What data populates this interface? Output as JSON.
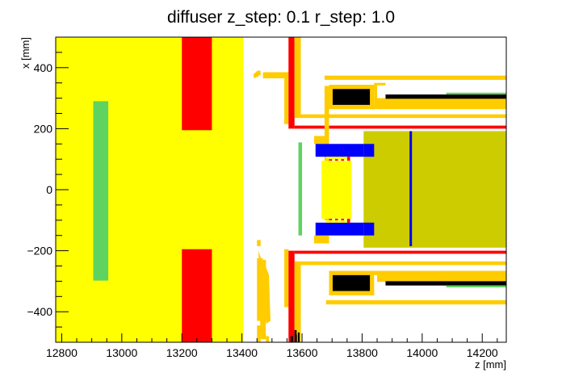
{
  "chart_data": {
    "type": "heatmap",
    "title": "diffuser z_step: 0.1 r_step: 1.0",
    "xlabel": "z [mm]",
    "ylabel": "x [mm]",
    "xlim": [
      12780,
      14280
    ],
    "ylim": [
      -500,
      500
    ],
    "xticks": [
      {
        "v": 12800,
        "label": "12800"
      },
      {
        "v": 13000,
        "label": "13000"
      },
      {
        "v": 13200,
        "label": "13200"
      },
      {
        "v": 13400,
        "label": "13400"
      },
      {
        "v": 13600,
        "label": "13600"
      },
      {
        "v": 13800,
        "label": "13800"
      },
      {
        "v": 14000,
        "label": "14000"
      },
      {
        "v": 14200,
        "label": "14200"
      }
    ],
    "yticks": [
      {
        "v": 400,
        "label": "400"
      },
      {
        "v": 200,
        "label": "200"
      },
      {
        "v": 0,
        "label": "0"
      },
      {
        "v": -200,
        "label": "−200"
      },
      {
        "v": -400,
        "label": "−400"
      }
    ],
    "colors": {
      "yellow": "#ffff00",
      "red": "#ff0000",
      "green": "#5fd35f",
      "gold": "#ffcc00",
      "olive": "#cccc00",
      "blue": "#0000ff",
      "black": "#000000",
      "white": "#ffffff"
    },
    "regions": [
      {
        "z0": 12780,
        "z1": 13405,
        "x0": -500,
        "x1": 500,
        "color": "yellow"
      },
      {
        "z0": 13200,
        "z1": 13300,
        "x0": 195,
        "x1": 500,
        "color": "red"
      },
      {
        "z0": 13200,
        "z1": 13300,
        "x0": -500,
        "x1": -195,
        "color": "red"
      },
      {
        "z0": 12905,
        "z1": 12955,
        "x0": -298,
        "x1": 290,
        "color": "green"
      },
      {
        "z0": 13450,
        "z1": 13462,
        "x0": 375,
        "x1": 390,
        "color": "gold"
      },
      {
        "z0": 13470,
        "z1": 13550,
        "x0": 365,
        "x1": 385,
        "color": "gold"
      },
      {
        "z0": 13541,
        "z1": 13555,
        "x0": 215,
        "x1": 385,
        "color": "gold"
      },
      {
        "z0": 13450,
        "z1": 13462,
        "x0": -185,
        "x1": -165,
        "color": "gold"
      },
      {
        "z0": 13450,
        "z1": 13470,
        "x0": -430,
        "x1": -225,
        "color": "gold"
      },
      {
        "z0": 13470,
        "z1": 13480,
        "x0": -430,
        "x1": -230,
        "color": "gold"
      },
      {
        "z0": 13450,
        "z1": 13462,
        "x0": -500,
        "x1": -445,
        "color": "gold"
      },
      {
        "z0": 13480,
        "z1": 13490,
        "x0": -500,
        "x1": -480,
        "color": "gold"
      },
      {
        "z0": 13541,
        "z1": 13555,
        "x0": -385,
        "x1": -195,
        "color": "gold"
      },
      {
        "z0": 13555,
        "z1": 13575,
        "x0": 200,
        "x1": 500,
        "color": "red"
      },
      {
        "z0": 13555,
        "z1": 13575,
        "x0": -500,
        "x1": -200,
        "color": "red"
      },
      {
        "z0": 13575,
        "z1": 14280,
        "x0": 200,
        "x1": 210,
        "color": "red"
      },
      {
        "z0": 13575,
        "z1": 14280,
        "x0": -210,
        "x1": -200,
        "color": "red"
      },
      {
        "z0": 13575,
        "z1": 13596,
        "x0": 235,
        "x1": 500,
        "color": "gold"
      },
      {
        "z0": 13575,
        "z1": 13596,
        "x0": -500,
        "x1": -235,
        "color": "gold"
      },
      {
        "z0": 13596,
        "z1": 14280,
        "x0": 235,
        "x1": 247,
        "color": "gold"
      },
      {
        "z0": 13596,
        "z1": 14280,
        "x0": -247,
        "x1": -235,
        "color": "gold"
      },
      {
        "z0": 13575,
        "z1": 13582,
        "x0": -500,
        "x1": -460,
        "color": "black"
      },
      {
        "z0": 13586,
        "z1": 13592,
        "x0": -500,
        "x1": -468,
        "color": "black"
      },
      {
        "z0": 13562,
        "z1": 13570,
        "x0": -500,
        "x1": -480,
        "color": "black"
      },
      {
        "z0": 13577,
        "z1": 13583,
        "x0": -500,
        "x1": -475,
        "color": "black"
      },
      {
        "z0": 13675,
        "z1": 13690,
        "x0": -100,
        "x1": 340,
        "color": "gold"
      },
      {
        "z0": 13675,
        "z1": 14280,
        "x0": 360,
        "x1": 374,
        "color": "gold"
      },
      {
        "z0": 13690,
        "z1": 14280,
        "x0": 264,
        "x1": 278,
        "color": "gold"
      },
      {
        "z0": 13690,
        "z1": 13840,
        "x0": 330,
        "x1": 344,
        "color": "gold"
      },
      {
        "z0": 13826,
        "z1": 13840,
        "x0": 264,
        "x1": 344,
        "color": "gold"
      },
      {
        "z0": 13690,
        "z1": 13702,
        "x0": 278,
        "x1": 330,
        "color": "gold"
      },
      {
        "z0": 13702,
        "z1": 13826,
        "x0": 278,
        "x1": 330,
        "color": "black"
      },
      {
        "z0": 13840,
        "z1": 13878,
        "x0": 342,
        "x1": 350,
        "color": "gold"
      },
      {
        "z0": 13840,
        "z1": 13878,
        "x0": 268,
        "x1": 272,
        "color": "gold"
      },
      {
        "z0": 13840,
        "z1": 13850,
        "x0": 272,
        "x1": 342,
        "color": "gold"
      },
      {
        "z0": 13850,
        "z1": 14280,
        "x0": 272,
        "x1": 300,
        "color": "gold"
      },
      {
        "z0": 13878,
        "z1": 14280,
        "x0": 298,
        "x1": 312,
        "color": "black"
      },
      {
        "z0": 14080,
        "z1": 14280,
        "x0": 312,
        "x1": 318,
        "color": "green"
      },
      {
        "z0": 13680,
        "z1": 14280,
        "x0": -376,
        "x1": -362,
        "color": "gold"
      },
      {
        "z0": 13690,
        "z1": 14280,
        "x0": -280,
        "x1": -266,
        "color": "gold"
      },
      {
        "z0": 13690,
        "z1": 13840,
        "x0": -346,
        "x1": -332,
        "color": "gold"
      },
      {
        "z0": 13826,
        "z1": 13840,
        "x0": -346,
        "x1": -266,
        "color": "gold"
      },
      {
        "z0": 13690,
        "z1": 13702,
        "x0": -332,
        "x1": -280,
        "color": "gold"
      },
      {
        "z0": 13702,
        "z1": 13826,
        "x0": -332,
        "x1": -280,
        "color": "black"
      },
      {
        "z0": 13850,
        "z1": 14280,
        "x0": -302,
        "x1": -274,
        "color": "gold"
      },
      {
        "z0": 13878,
        "z1": 14280,
        "x0": -314,
        "x1": -300,
        "color": "black"
      },
      {
        "z0": 14080,
        "z1": 14280,
        "x0": -320,
        "x1": -314,
        "color": "green"
      },
      {
        "z0": 13640,
        "z1": 13690,
        "x0": 150,
        "x1": 176,
        "color": "gold"
      },
      {
        "z0": 13640,
        "z1": 13690,
        "x0": -176,
        "x1": -150,
        "color": "gold"
      },
      {
        "z0": 13645,
        "z1": 13840,
        "x0": 108,
        "x1": 150,
        "color": "blue"
      },
      {
        "z0": 13645,
        "z1": 13840,
        "x0": -150,
        "x1": -108,
        "color": "blue"
      },
      {
        "z0": 13690,
        "z1": 13700,
        "x0": 95,
        "x1": 108,
        "color": "red"
      },
      {
        "z0": 13710,
        "z1": 13720,
        "x0": 95,
        "x1": 108,
        "color": "red"
      },
      {
        "z0": 13730,
        "z1": 13740,
        "x0": 95,
        "x1": 108,
        "color": "red"
      },
      {
        "z0": 13750,
        "z1": 13760,
        "x0": 95,
        "x1": 108,
        "color": "red"
      },
      {
        "z0": 13690,
        "z1": 13700,
        "x0": -108,
        "x1": -95,
        "color": "red"
      },
      {
        "z0": 13710,
        "z1": 13720,
        "x0": -108,
        "x1": -95,
        "color": "red"
      },
      {
        "z0": 13730,
        "z1": 13740,
        "x0": -108,
        "x1": -95,
        "color": "red"
      },
      {
        "z0": 13750,
        "z1": 13760,
        "x0": -108,
        "x1": -95,
        "color": "red"
      },
      {
        "z0": 13665,
        "z1": 13765,
        "x0": -95,
        "x1": 95,
        "color": "yellow"
      },
      {
        "z0": 13680,
        "z1": 13750,
        "x0": 100,
        "x1": 108,
        "color": "yellow"
      },
      {
        "z0": 13680,
        "z1": 13750,
        "x0": -108,
        "x1": -100,
        "color": "yellow"
      },
      {
        "z0": 13805,
        "z1": 14280,
        "x0": -190,
        "x1": 192,
        "color": "olive"
      },
      {
        "z0": 13805,
        "z1": 13840,
        "x0": 108,
        "x1": 150,
        "color": "blue"
      },
      {
        "z0": 13805,
        "z1": 13840,
        "x0": -150,
        "x1": -108,
        "color": "blue"
      },
      {
        "z0": 13958,
        "z1": 13966,
        "x0": -185,
        "x1": 192,
        "color": "blue"
      },
      {
        "z0": 13588,
        "z1": 13600,
        "x0": -150,
        "x1": 155,
        "color": "green"
      }
    ],
    "polygons": [
      {
        "points": [
          [
            13438,
            378
          ],
          [
            13452,
            390
          ],
          [
            13456,
            372
          ],
          [
            13440,
            365
          ]
        ],
        "color": "gold"
      },
      {
        "points": [
          [
            13455,
            -200
          ],
          [
            13475,
            -260
          ],
          [
            13480,
            -490
          ],
          [
            13462,
            -490
          ]
        ],
        "color": "gold"
      },
      {
        "points": [
          [
            13475,
            -240
          ],
          [
            13490,
            -280
          ],
          [
            13495,
            -430
          ],
          [
            13480,
            -440
          ]
        ],
        "color": "gold"
      }
    ]
  }
}
